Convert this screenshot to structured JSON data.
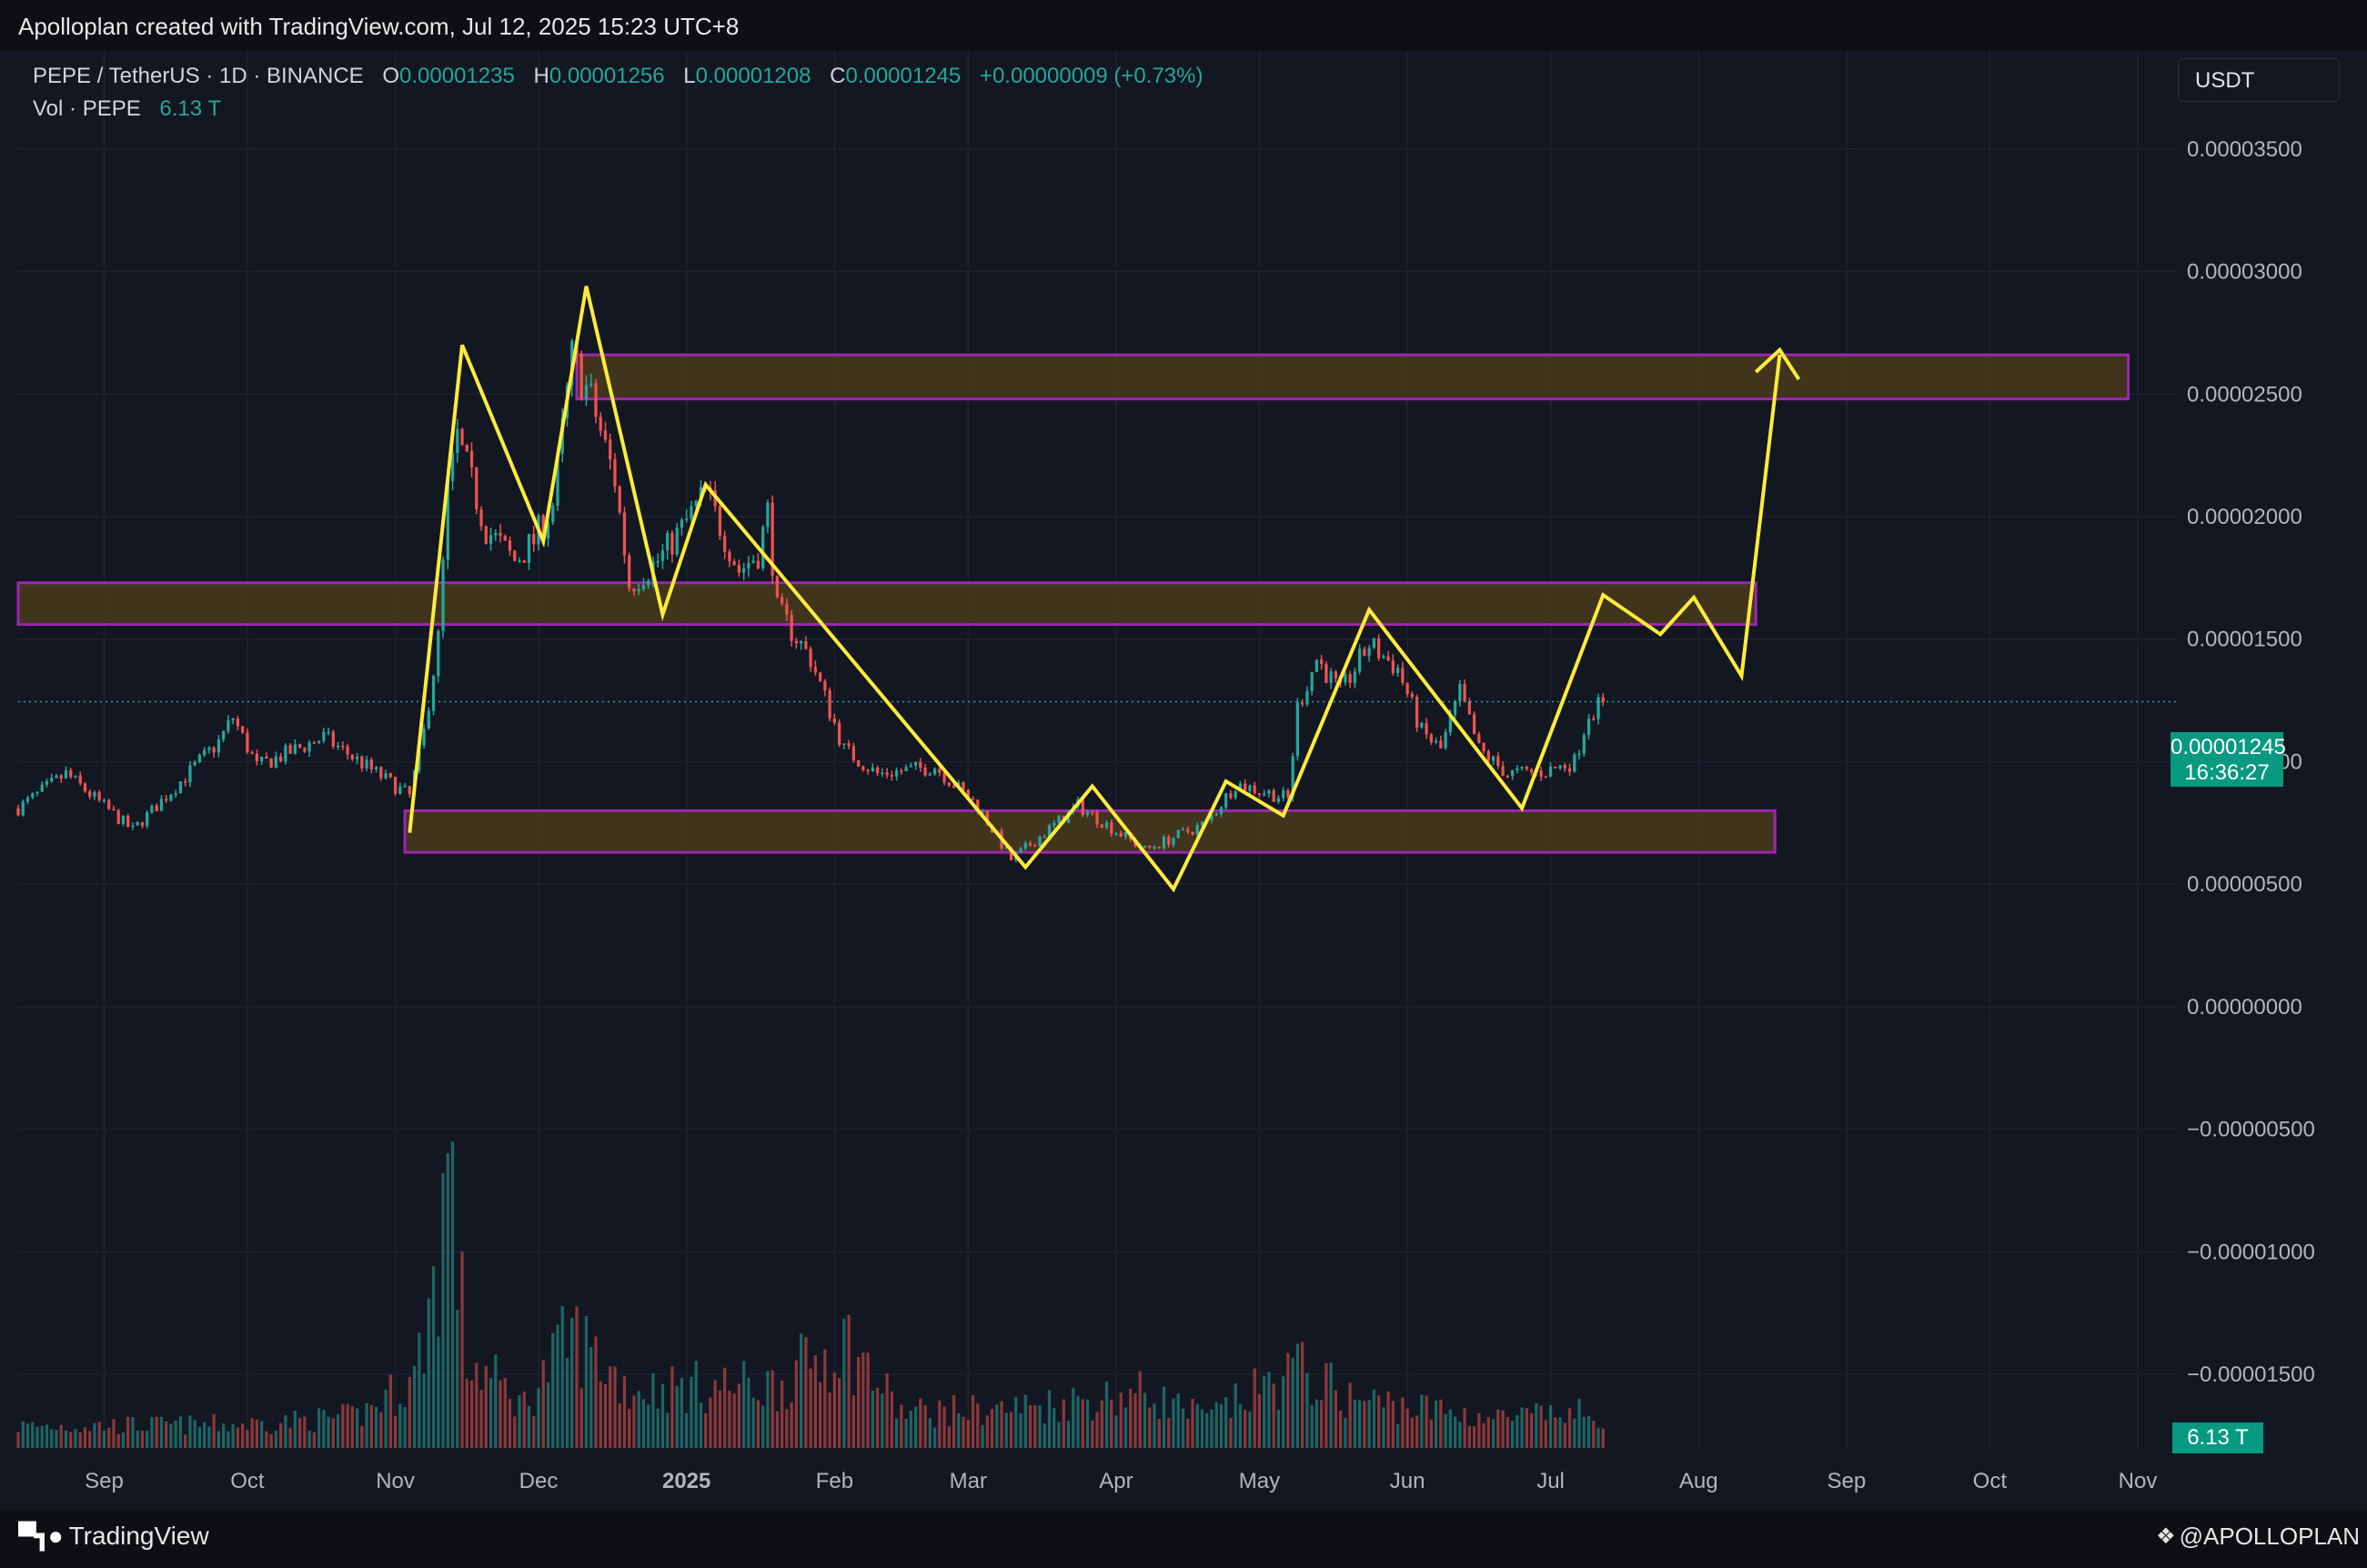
{
  "header": {
    "credit": "Apolloplan created with TradingView.com, Jul 12, 2025 15:23 UTC+8"
  },
  "legend": {
    "symbol": "PEPE / TetherUS · 1D · BINANCE",
    "o_label": "O",
    "o_value": "0.00001235",
    "h_label": "H",
    "h_value": "0.00001256",
    "l_label": "L",
    "l_value": "0.00001208",
    "c_label": "C",
    "c_value": "0.00001245",
    "change": "+0.00000009 (+0.73%)",
    "vol_label": "Vol · PEPE",
    "vol_value": "6.13 T"
  },
  "currency_button": "USDT",
  "price_badge": {
    "price": "0.00001245",
    "countdown": "16:36:27"
  },
  "volume_badge": "6.13 T",
  "footer": {
    "brand": "TradingView",
    "watermark": "@APOLLOPLAN"
  },
  "colors": {
    "up": "#26a69a",
    "down": "#ef5350",
    "zone_border": "#9c27b0",
    "zone_fill": "#4a3a1c",
    "drawing": "#ffeb3b",
    "background": "#131722"
  },
  "chart_data": {
    "type": "candlestick",
    "ylim": [
      -1.8e-05,
      3.9e-05
    ],
    "y_ticks": [
      {
        "value": 3.5e-05,
        "label": "0.00003500"
      },
      {
        "value": 3e-05,
        "label": "0.00003000"
      },
      {
        "value": 2.5e-05,
        "label": "0.00002500"
      },
      {
        "value": 2e-05,
        "label": "0.00002000"
      },
      {
        "value": 1.5e-05,
        "label": "0.00001500"
      },
      {
        "value": 1e-05,
        "label": "0.00001000"
      },
      {
        "value": 5e-06,
        "label": "0.00000500"
      },
      {
        "value": 0,
        "label": "0.00000000"
      },
      {
        "value": -5e-06,
        "label": "−0.00000500"
      },
      {
        "value": -1e-05,
        "label": "−0.00001000"
      },
      {
        "value": -1.5e-05,
        "label": "−0.00001500"
      }
    ],
    "x_range": [
      "2024-08-14",
      "2025-11-09"
    ],
    "x_ticks": [
      {
        "date": "2024-09-01",
        "label": "Sep",
        "bold": false
      },
      {
        "date": "2024-10-01",
        "label": "Oct",
        "bold": false
      },
      {
        "date": "2024-11-01",
        "label": "Nov",
        "bold": false
      },
      {
        "date": "2024-12-01",
        "label": "Dec",
        "bold": false
      },
      {
        "date": "2025-01-01",
        "label": "2025",
        "bold": true
      },
      {
        "date": "2025-02-01",
        "label": "Feb",
        "bold": false
      },
      {
        "date": "2025-03-01",
        "label": "Mar",
        "bold": false
      },
      {
        "date": "2025-04-01",
        "label": "Apr",
        "bold": false
      },
      {
        "date": "2025-05-01",
        "label": "May",
        "bold": false
      },
      {
        "date": "2025-06-01",
        "label": "Jun",
        "bold": false
      },
      {
        "date": "2025-07-01",
        "label": "Jul",
        "bold": false
      },
      {
        "date": "2025-08-01",
        "label": "Aug",
        "bold": false
      },
      {
        "date": "2025-09-01",
        "label": "Sep",
        "bold": false
      },
      {
        "date": "2025-10-01",
        "label": "Oct",
        "bold": false
      },
      {
        "date": "2025-11-01",
        "label": "Nov",
        "bold": false
      }
    ],
    "price_start": "2024-08-14",
    "price_end": "2025-07-12",
    "price_path": [
      {
        "date": "2024-08-14",
        "value": 8.1e-06
      },
      {
        "date": "2024-08-24",
        "value": 9.5e-06
      },
      {
        "date": "2024-09-07",
        "value": 7.2e-06
      },
      {
        "date": "2024-09-25",
        "value": 1.08e-05
      },
      {
        "date": "2024-09-28",
        "value": 1.18e-05
      },
      {
        "date": "2024-10-03",
        "value": 9.8e-06
      },
      {
        "date": "2024-10-17",
        "value": 1.1e-05
      },
      {
        "date": "2024-11-04",
        "value": 8.6e-06
      },
      {
        "date": "2024-11-07",
        "value": 1.12e-05
      },
      {
        "date": "2024-11-10",
        "value": 1.5e-05
      },
      {
        "date": "2024-11-12",
        "value": 2.1e-05
      },
      {
        "date": "2024-11-14",
        "value": 2.32e-05
      },
      {
        "date": "2024-11-20",
        "value": 1.95e-05
      },
      {
        "date": "2024-11-26",
        "value": 1.82e-05
      },
      {
        "date": "2024-11-30",
        "value": 1.9e-05
      },
      {
        "date": "2024-12-04",
        "value": 2.05e-05
      },
      {
        "date": "2024-12-08",
        "value": 2.65e-05
      },
      {
        "date": "2024-12-12",
        "value": 2.48e-05
      },
      {
        "date": "2024-12-17",
        "value": 2.15e-05
      },
      {
        "date": "2024-12-20",
        "value": 1.72e-05
      },
      {
        "date": "2024-12-26",
        "value": 1.82e-05
      },
      {
        "date": "2024-12-31",
        "value": 1.95e-05
      },
      {
        "date": "2025-01-05",
        "value": 2.1e-05
      },
      {
        "date": "2025-01-12",
        "value": 1.78e-05
      },
      {
        "date": "2025-01-16",
        "value": 1.85e-05
      },
      {
        "date": "2025-01-18",
        "value": 2.02e-05
      },
      {
        "date": "2025-01-20",
        "value": 1.62e-05
      },
      {
        "date": "2025-01-27",
        "value": 1.42e-05
      },
      {
        "date": "2025-02-03",
        "value": 1.05e-05
      },
      {
        "date": "2025-02-10",
        "value": 9.5e-06
      },
      {
        "date": "2025-02-22",
        "value": 9.8e-06
      },
      {
        "date": "2025-03-03",
        "value": 8.2e-06
      },
      {
        "date": "2025-03-10",
        "value": 6e-06
      },
      {
        "date": "2025-03-24",
        "value": 8.2e-06
      },
      {
        "date": "2025-04-07",
        "value": 6.4e-06
      },
      {
        "date": "2025-04-20",
        "value": 7.5e-06
      },
      {
        "date": "2025-04-26",
        "value": 9.1e-06
      },
      {
        "date": "2025-05-07",
        "value": 8.5e-06
      },
      {
        "date": "2025-05-09",
        "value": 1.22e-05
      },
      {
        "date": "2025-05-13",
        "value": 1.42e-05
      },
      {
        "date": "2025-05-18",
        "value": 1.28e-05
      },
      {
        "date": "2025-05-24",
        "value": 1.48e-05
      },
      {
        "date": "2025-05-30",
        "value": 1.38e-05
      },
      {
        "date": "2025-06-04",
        "value": 1.12e-05
      },
      {
        "date": "2025-06-08",
        "value": 1.05e-05
      },
      {
        "date": "2025-06-12",
        "value": 1.28e-05
      },
      {
        "date": "2025-06-16",
        "value": 1.05e-05
      },
      {
        "date": "2025-06-22",
        "value": 9.5e-06
      },
      {
        "date": "2025-06-30",
        "value": 9.6e-06
      },
      {
        "date": "2025-07-06",
        "value": 1e-05
      },
      {
        "date": "2025-07-09",
        "value": 1.2e-05
      },
      {
        "date": "2025-07-12",
        "value": 1.24e-05
      }
    ],
    "current_price": 1.245e-05,
    "volume_range": [
      0,
      165
    ],
    "volume_path": [
      {
        "date": "2024-08-14",
        "value": 11
      },
      {
        "date": "2024-10-01",
        "value": 12
      },
      {
        "date": "2024-10-24",
        "value": 16
      },
      {
        "date": "2024-11-05",
        "value": 35
      },
      {
        "date": "2024-11-10",
        "value": 95
      },
      {
        "date": "2024-11-12",
        "value": 150
      },
      {
        "date": "2024-11-16",
        "value": 45
      },
      {
        "date": "2024-11-28",
        "value": 22
      },
      {
        "date": "2024-12-08",
        "value": 58
      },
      {
        "date": "2024-12-20",
        "value": 30
      },
      {
        "date": "2025-01-20",
        "value": 32
      },
      {
        "date": "2025-02-03",
        "value": 55
      },
      {
        "date": "2025-02-15",
        "value": 18
      },
      {
        "date": "2025-03-10",
        "value": 20
      },
      {
        "date": "2025-04-07",
        "value": 28
      },
      {
        "date": "2025-04-20",
        "value": 15
      },
      {
        "date": "2025-05-09",
        "value": 40
      },
      {
        "date": "2025-05-20",
        "value": 25
      },
      {
        "date": "2025-06-20",
        "value": 15
      },
      {
        "date": "2025-07-12",
        "value": 18
      }
    ],
    "zones": [
      {
        "x_from": "2024-12-09",
        "x_to": "2025-10-30",
        "y_from": 2.48e-05,
        "y_to": 2.66e-05
      },
      {
        "x_from": "2024-08-14",
        "x_to": "2025-08-13",
        "y_from": 1.56e-05,
        "y_to": 1.73e-05
      },
      {
        "x_from": "2024-11-03",
        "x_to": "2025-08-17",
        "y_from": 6.3e-06,
        "y_to": 8e-06
      }
    ],
    "projection_path": [
      {
        "date": "2024-11-04",
        "value": 7.1e-06
      },
      {
        "date": "2024-11-15",
        "value": 2.7e-05
      },
      {
        "date": "2024-12-02",
        "value": 1.9e-05
      },
      {
        "date": "2024-12-11",
        "value": 2.94e-05
      },
      {
        "date": "2024-12-27",
        "value": 1.6e-05
      },
      {
        "date": "2025-01-05",
        "value": 2.13e-05
      },
      {
        "date": "2025-03-13",
        "value": 5.7e-06
      },
      {
        "date": "2025-03-27",
        "value": 9e-06
      },
      {
        "date": "2025-04-13",
        "value": 4.8e-06
      },
      {
        "date": "2025-04-24",
        "value": 9.2e-06
      },
      {
        "date": "2025-05-06",
        "value": 7.8e-06
      },
      {
        "date": "2025-05-24",
        "value": 1.62e-05
      },
      {
        "date": "2025-06-25",
        "value": 8.1e-06
      },
      {
        "date": "2025-07-12",
        "value": 1.68e-05
      },
      {
        "date": "2025-07-24",
        "value": 1.52e-05
      },
      {
        "date": "2025-07-31",
        "value": 1.67e-05
      },
      {
        "date": "2025-08-10",
        "value": 1.35e-05
      },
      {
        "date": "2025-08-18",
        "value": 2.66e-05
      }
    ],
    "arrowhead": [
      {
        "date": "2025-08-13",
        "value": 2.59e-05
      },
      {
        "date": "2025-08-18",
        "value": 2.68e-05
      },
      {
        "date": "2025-08-22",
        "value": 2.56e-05
      }
    ]
  }
}
